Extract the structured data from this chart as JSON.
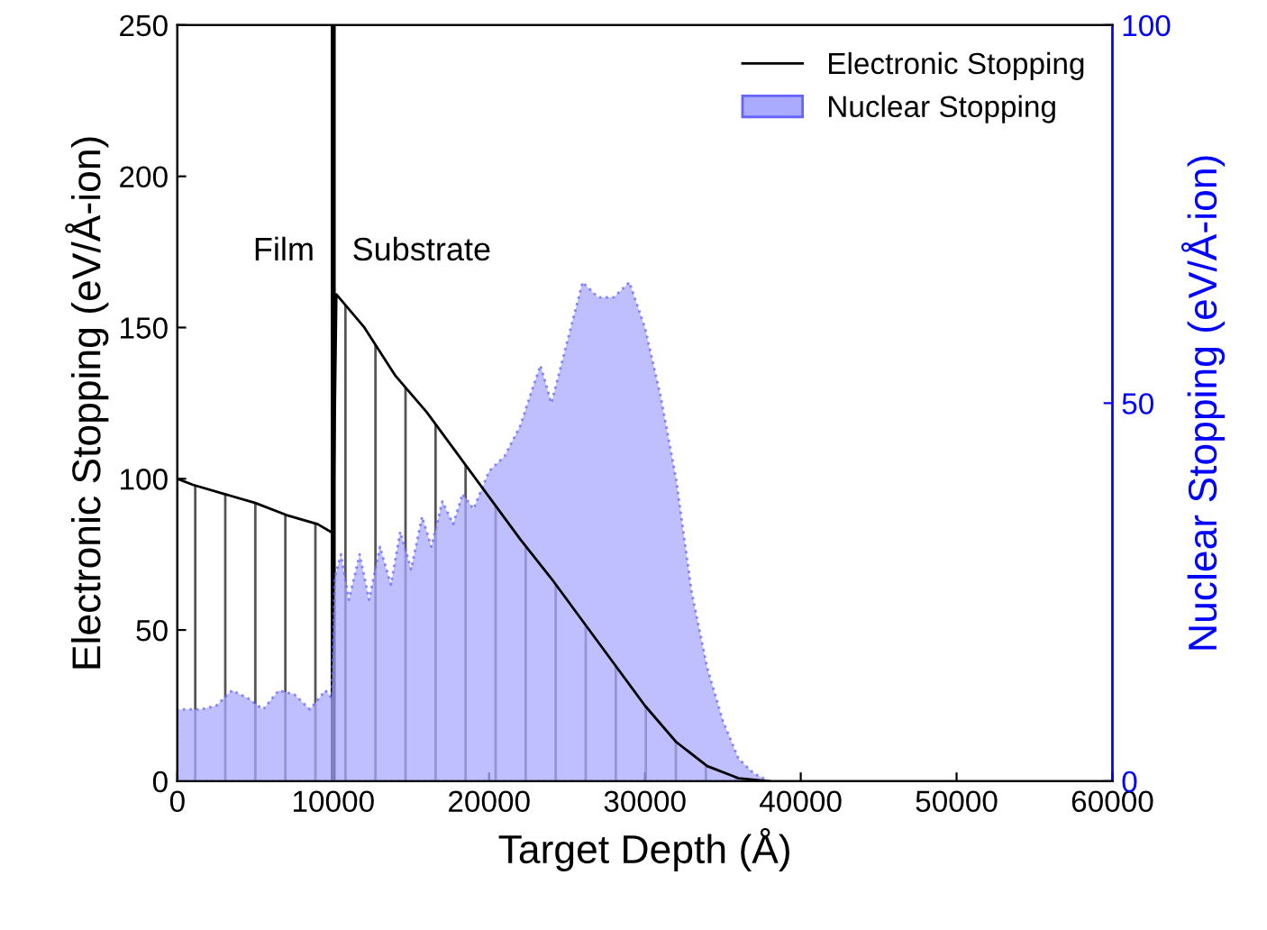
{
  "chart_data": {
    "type": "area",
    "xlabel": "Target Depth (Å)",
    "ylabel": "Electronic Stopping (eV/Å-ion)",
    "y2label": "Nuclear Stopping (eV/Å-ion)",
    "xlim": [
      0,
      60000
    ],
    "xticks": [
      0,
      10000,
      20000,
      30000,
      40000,
      50000,
      60000
    ],
    "ylim": [
      0,
      250
    ],
    "yticks": [
      0,
      50,
      100,
      150,
      200,
      250
    ],
    "y2lim": [
      0,
      100
    ],
    "y2ticks": [
      0,
      50,
      100
    ],
    "legend": "top right",
    "grid": false,
    "series": [
      {
        "name": "Electronic Stopping",
        "color": "#000000",
        "x": [
          0,
          1000,
          3000,
          5000,
          7000,
          9000,
          10000,
          10200,
          12000,
          14000,
          16000,
          18000,
          20000,
          22000,
          24000,
          26000,
          28000,
          30000,
          32000,
          34000,
          36000,
          38000
        ],
        "values": [
          100,
          98,
          95,
          92,
          88,
          85,
          82,
          161,
          150,
          134,
          122,
          108,
          94,
          80,
          67,
          53,
          39,
          25,
          13,
          5,
          1,
          0
        ]
      },
      {
        "name": "Nuclear Stopping",
        "axis": "y2",
        "color": "#aaaaff",
        "x": [
          0,
          1500,
          2500,
          3500,
          4500,
          5500,
          6500,
          7500,
          8500,
          9500,
          9900,
          10100,
          10500,
          11000,
          11700,
          12300,
          13000,
          13700,
          14300,
          15000,
          15700,
          16300,
          17000,
          17700,
          18300,
          19000,
          20000,
          21000,
          22000,
          22800,
          23300,
          24000,
          25000,
          26000,
          27000,
          28000,
          29000,
          30000,
          31000,
          32000,
          33000,
          34000,
          35000,
          36000,
          37000,
          38000
        ],
        "values": [
          9.5,
          9.5,
          10,
          12,
          11,
          9.5,
          12,
          11.5,
          9.5,
          12,
          11,
          27,
          30,
          24,
          30,
          24,
          31,
          26,
          33,
          28,
          35,
          31,
          37,
          34,
          38,
          36,
          41,
          43,
          47,
          52,
          55,
          50,
          58,
          66,
          64,
          64,
          66,
          60,
          51,
          40,
          25,
          15,
          8,
          3,
          1,
          0
        ]
      }
    ],
    "ref_lines": [
      {
        "axis": "x",
        "value": 10000,
        "color": "#000000"
      }
    ],
    "annotations": [
      "Film",
      "Substrate"
    ]
  }
}
